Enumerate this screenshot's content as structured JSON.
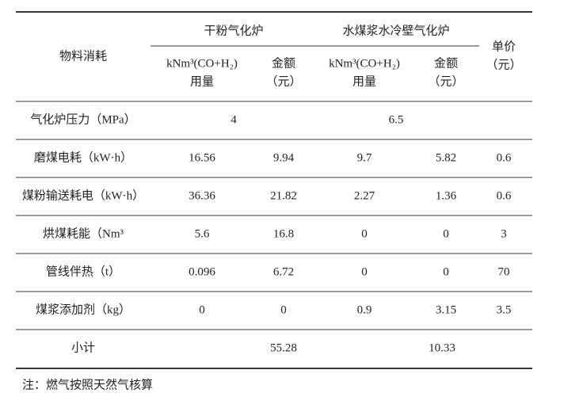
{
  "table": {
    "header": {
      "item": "物料消耗",
      "groups": [
        "干粉气化炉",
        "水煤浆水冷壁气化炉"
      ],
      "subcolumns": [
        [
          "kNm³(CO+H₂)",
          "用量"
        ],
        [
          "金额",
          "（元）"
        ],
        [
          "kNm³(CO+H₂)",
          "用量"
        ],
        [
          "金额",
          "（元）"
        ]
      ],
      "unit_price": [
        "单价",
        "（元）"
      ]
    },
    "pressure_row": {
      "label": "气化炉压力（MPa）",
      "values": [
        "4",
        "6.5"
      ]
    },
    "rows": [
      [
        "磨煤电耗（kW·h）",
        "16.56",
        "9.94",
        "9.7",
        "5.82",
        "0.6"
      ],
      [
        "煤粉输送耗电（kW·h）",
        "36.36",
        "21.82",
        "2.27",
        "1.36",
        "0.6"
      ],
      [
        "烘煤耗能（Nm³",
        "5.6",
        "16.8",
        "0",
        "0",
        "3"
      ],
      [
        "管线伴热（t）",
        "0.096",
        "6.72",
        "0",
        "0",
        "70"
      ],
      [
        "煤浆添加剂（kg）",
        "0",
        "0",
        "0.9",
        "3.15",
        "3.5"
      ]
    ],
    "subtotal": {
      "label": "小计",
      "values": [
        "55.28",
        "10.33"
      ]
    }
  },
  "note": "注：燃气按照天然气核算"
}
